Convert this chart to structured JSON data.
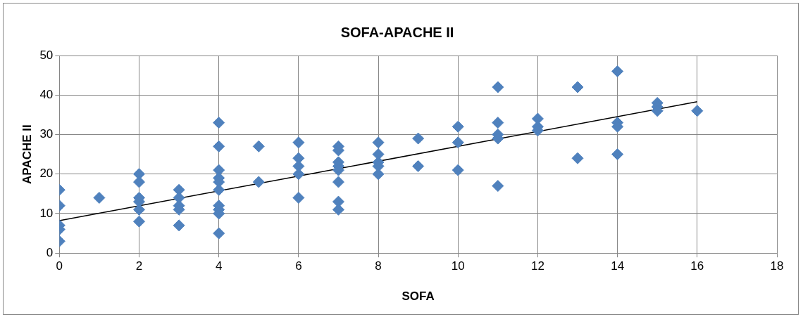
{
  "chart_data": {
    "type": "scatter",
    "title": "SOFA-APACHE II",
    "xlabel": "SOFA",
    "ylabel": "APACHE II",
    "xlim": [
      0,
      18
    ],
    "xticks": [
      0,
      2,
      4,
      6,
      8,
      10,
      12,
      14,
      16,
      18
    ],
    "ylim": [
      0,
      50
    ],
    "yticks": [
      0,
      10,
      20,
      30,
      40,
      50
    ],
    "grid": true,
    "legend": false,
    "marker": "diamond",
    "series": [
      {
        "color": "#4f81bd",
        "x": [
          0,
          0,
          0,
          0,
          0,
          1,
          2,
          2,
          2,
          2,
          2,
          2,
          3,
          3,
          3,
          3,
          3,
          4,
          4,
          4,
          4,
          4,
          4,
          4,
          4,
          4,
          4,
          5,
          5,
          6,
          6,
          6,
          6,
          6,
          7,
          7,
          7,
          7,
          7,
          7,
          7,
          7,
          8,
          8,
          8,
          8,
          8,
          9,
          9,
          10,
          10,
          10,
          11,
          11,
          11,
          11,
          11,
          12,
          12,
          12,
          13,
          13,
          14,
          14,
          14,
          14,
          15,
          15,
          15,
          16
        ],
        "values": [
          16,
          12,
          7,
          6,
          3,
          14,
          20,
          18,
          14,
          13,
          11,
          8,
          16,
          14,
          12,
          11,
          7,
          33,
          27,
          21,
          19,
          18,
          16,
          12,
          11,
          10,
          5,
          27,
          18,
          28,
          24,
          22,
          20,
          14,
          27,
          26,
          23,
          22,
          21,
          18,
          13,
          11,
          28,
          25,
          23,
          22,
          20,
          29,
          22,
          32,
          28,
          21,
          42,
          33,
          30,
          29,
          17,
          34,
          32,
          31,
          42,
          24,
          46,
          33,
          32,
          25,
          38,
          37,
          36,
          36
        ]
      },
      {
        "type": "line",
        "color": "#000000",
        "marker": "none",
        "line_style": "solid",
        "x": [
          0,
          16
        ],
        "values": [
          8.2,
          38.3
        ]
      }
    ]
  }
}
